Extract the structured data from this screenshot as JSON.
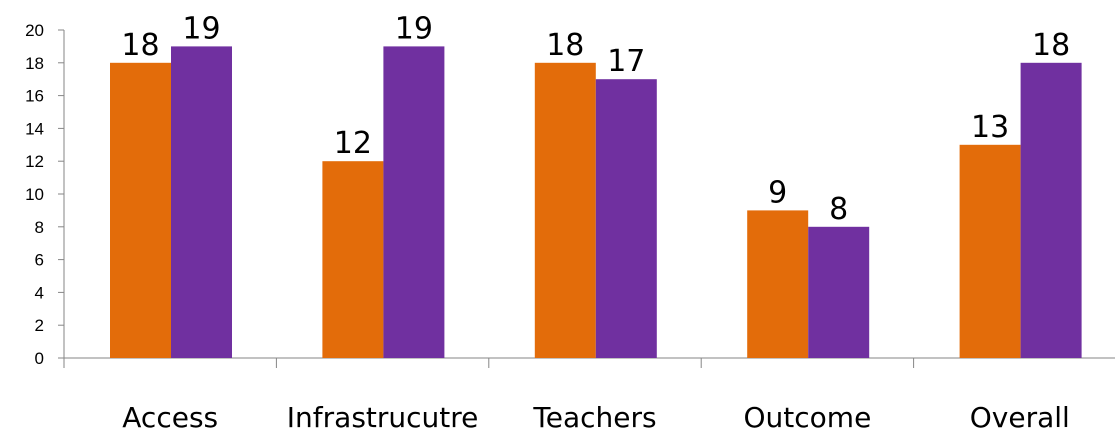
{
  "chart_data": {
    "type": "bar",
    "categories": [
      "Access",
      "Infrastrucutre",
      "Teachers",
      "Outcome",
      "Overall"
    ],
    "series": [
      {
        "values": [
          18,
          12,
          18,
          9,
          13
        ],
        "color": "#E36C0A"
      },
      {
        "values": [
          19,
          19,
          17,
          8,
          18
        ],
        "color": "#7030A0"
      }
    ],
    "ylim": [
      0,
      20
    ],
    "yticks": [
      0,
      2,
      4,
      6,
      8,
      10,
      12,
      14,
      16,
      18,
      20
    ],
    "grid": false,
    "legend": "none",
    "data_labels": true
  }
}
